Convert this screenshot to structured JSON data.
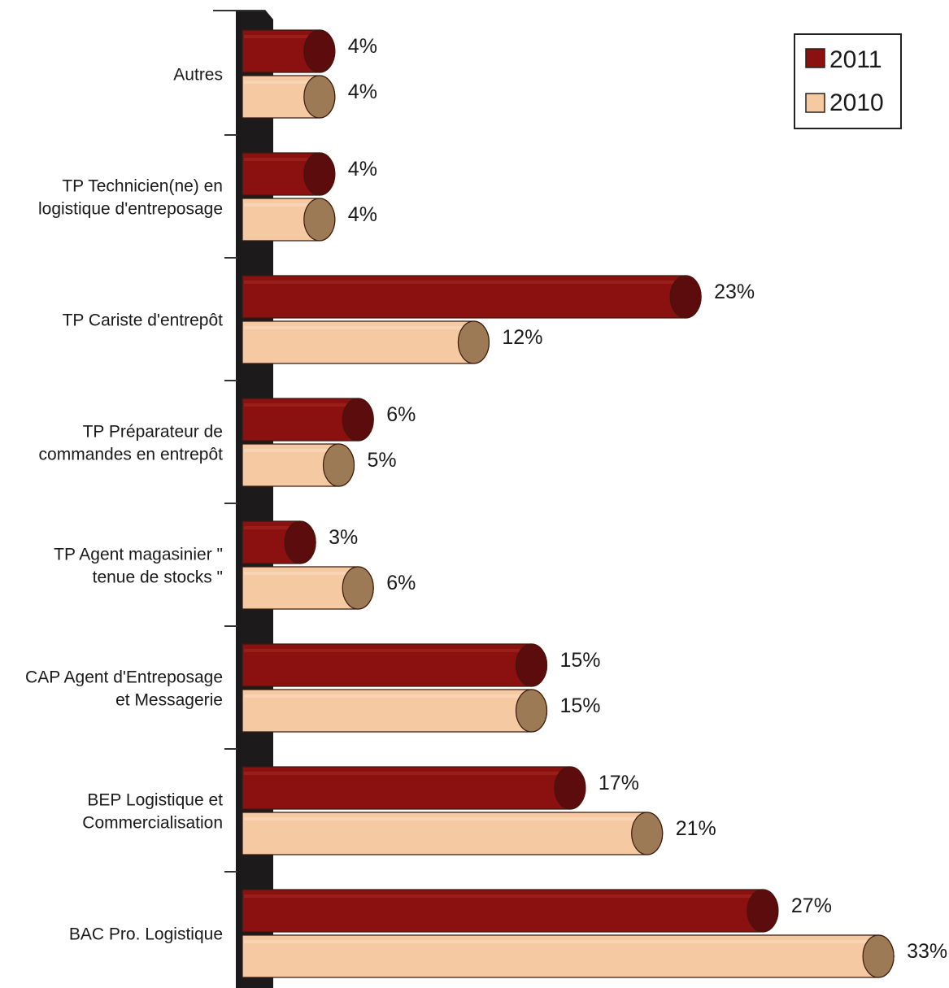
{
  "chart_data": {
    "type": "bar",
    "orientation": "horizontal",
    "style": "3d-cylinder",
    "categories": [
      [
        "Autres"
      ],
      [
        "TP Technicien(ne) en",
        "logistique d'entreposage"
      ],
      [
        "TP Cariste d'entrepôt"
      ],
      [
        "TP Préparateur de",
        "commandes en entrepôt"
      ],
      [
        "TP Agent magasinier \"",
        "tenue de stocks \""
      ],
      [
        "CAP Agent d'Entreposage",
        "et Messagerie"
      ],
      [
        "BEP Logistique et",
        "Commercialisation"
      ],
      [
        "BAC Pro. Logistique"
      ]
    ],
    "series": [
      {
        "name": "2011",
        "color": "#8b1010",
        "cap_color": "#5c0c0c",
        "values": [
          4,
          4,
          23,
          6,
          3,
          15,
          17,
          27
        ],
        "labels": [
          "4%",
          "4%",
          "23%",
          "6%",
          "3%",
          "15%",
          "17%",
          "27%"
        ]
      },
      {
        "name": "2010",
        "color": "#f5c9a2",
        "cap_color": "#9c7a56",
        "values": [
          4,
          4,
          12,
          5,
          6,
          15,
          21,
          33
        ],
        "labels": [
          "4%",
          "4%",
          "12%",
          "5%",
          "6%",
          "15%",
          "21%",
          "33%"
        ]
      }
    ],
    "legend_position": "top-right",
    "xlim": [
      0,
      33
    ],
    "grid": false
  }
}
